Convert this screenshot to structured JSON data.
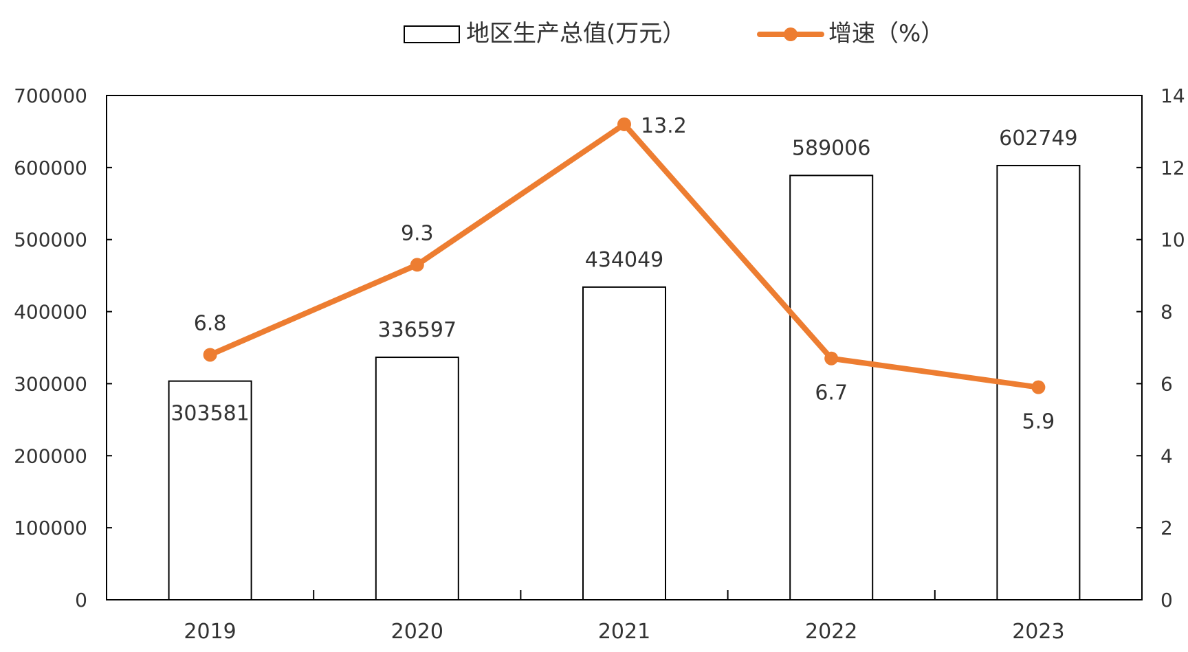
{
  "chart_data": {
    "type": "bar",
    "categories": [
      "2019",
      "2020",
      "2021",
      "2022",
      "2023"
    ],
    "series": [
      {
        "name": "地区生产总值(万元）",
        "type": "bar",
        "axis": "left",
        "values": [
          303581,
          336597,
          434049,
          589006,
          602749
        ],
        "color": "#ffffff",
        "border_color": "#000000"
      },
      {
        "name": "增速（%）",
        "type": "line",
        "axis": "right",
        "values": [
          6.8,
          9.3,
          13.2,
          6.7,
          5.9
        ],
        "labels": [
          "6.8",
          "9.3",
          "13.2",
          "6.7",
          "5.9"
        ],
        "color": "#ED7D31"
      }
    ],
    "bar_labels": [
      "303581",
      "336597",
      "434049",
      "589006",
      "602749"
    ],
    "y_left": {
      "range": [
        0,
        700000
      ],
      "ticks": [
        "0",
        "100000",
        "200000",
        "300000",
        "400000",
        "500000",
        "600000",
        "700000"
      ]
    },
    "y_right": {
      "range": [
        0,
        14
      ],
      "ticks": [
        "0",
        "2",
        "4",
        "6",
        "8",
        "10",
        "12",
        "14"
      ]
    },
    "grid": false,
    "legend": {
      "position": "top-center"
    }
  }
}
